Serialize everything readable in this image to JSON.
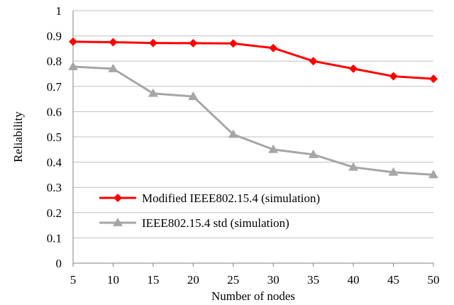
{
  "chart_data": {
    "type": "line",
    "title": "",
    "xlabel": "Number of nodes",
    "ylabel": "Reliability",
    "x": [
      5,
      10,
      15,
      20,
      25,
      30,
      35,
      40,
      45,
      50
    ],
    "x_tick_labels": [
      "5",
      "10",
      "15",
      "20",
      "25",
      "30",
      "35",
      "40",
      "45",
      "50"
    ],
    "y_tick_labels": [
      "0",
      "0.1",
      "0.2",
      "0.3",
      "0.4",
      "0.5",
      "0.6",
      "0.7",
      "0.8",
      "0.9",
      "1"
    ],
    "ylim": [
      0,
      1
    ],
    "grid": "horizontal",
    "legend_position": "inside-bottom-left",
    "series": [
      {
        "name": "Modified IEEE802.15.4 (simulation)",
        "color": "#ff0000",
        "marker": "diamond",
        "values": [
          0.877,
          0.875,
          0.872,
          0.871,
          0.87,
          0.852,
          0.8,
          0.77,
          0.74,
          0.73
        ]
      },
      {
        "name": "IEEE802.15.4 std (simulation)",
        "color": "#a6a6a6",
        "marker": "triangle",
        "values": [
          0.778,
          0.77,
          0.672,
          0.66,
          0.51,
          0.45,
          0.43,
          0.38,
          0.36,
          0.35
        ]
      }
    ]
  }
}
